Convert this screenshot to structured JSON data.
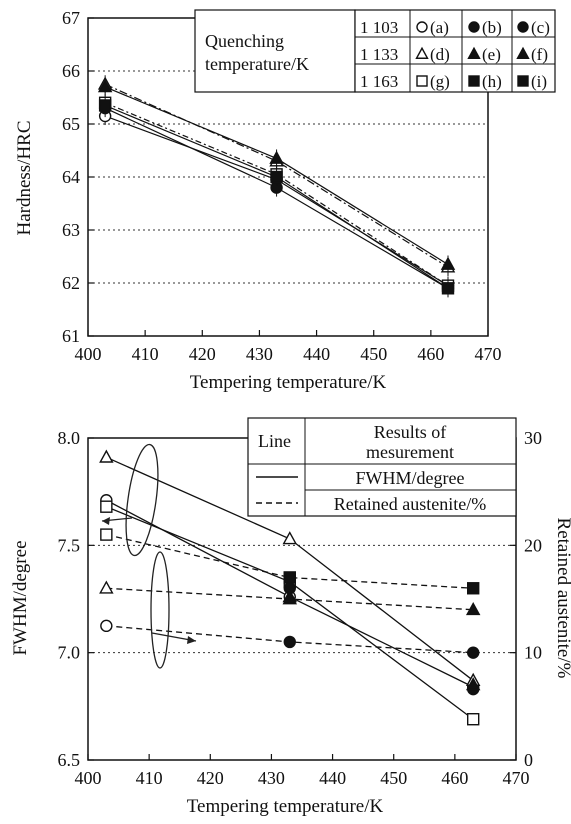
{
  "chart_data": [
    {
      "type": "line",
      "xlabel": "Tempering temperature/K",
      "ylabel": "Hardness/HRC",
      "xlim": [
        400,
        470
      ],
      "ylim": [
        61,
        67
      ],
      "xticks": [
        "400",
        "410",
        "420",
        "430",
        "440",
        "450",
        "460",
        "470"
      ],
      "yticks": [
        "61",
        "62",
        "63",
        "64",
        "65",
        "66",
        "67"
      ],
      "grid": "horizontal dotted",
      "legend": {
        "placement": "top-right",
        "title_line1": "Quenching",
        "title_line2": "temperature/K",
        "rows": [
          {
            "temperature": "1 103",
            "labels": [
              "(a)",
              "(b)",
              "(c)"
            ]
          },
          {
            "temperature": "1 133",
            "labels": [
              "(d)",
              "(e)",
              "(f)"
            ]
          },
          {
            "temperature": "1 163",
            "labels": [
              "(g)",
              "(h)",
              "(i)"
            ]
          }
        ]
      },
      "series": [
        {
          "key": "a",
          "marker": "circle-open",
          "x": [
            403,
            433,
            463
          ],
          "values": [
            65.15,
            63.95,
            61.95
          ]
        },
        {
          "key": "b",
          "marker": "circle-filled",
          "x": [
            403,
            433,
            463
          ],
          "values": [
            65.3,
            63.8,
            61.9
          ]
        },
        {
          "key": "d",
          "marker": "triangle-open",
          "x": [
            403,
            433,
            463
          ],
          "values": [
            65.75,
            64.3,
            62.3
          ]
        },
        {
          "key": "e",
          "marker": "triangle-filled",
          "x": [
            403,
            433,
            463
          ],
          "values": [
            65.7,
            64.35,
            62.35
          ]
        },
        {
          "key": "g",
          "marker": "square-open",
          "x": [
            403,
            433,
            463
          ],
          "values": [
            65.4,
            64.05,
            61.95
          ]
        },
        {
          "key": "h",
          "marker": "square-filled",
          "x": [
            403,
            433,
            463
          ],
          "values": [
            65.35,
            64.0,
            61.9
          ]
        }
      ]
    },
    {
      "type": "line",
      "xlabel": "Tempering temperature/K",
      "ylabel": "FWHM/degree",
      "y2label": "Retained austenite/%",
      "xlim": [
        400,
        470
      ],
      "ylim": [
        6.5,
        8.0
      ],
      "y2lim": [
        0,
        30
      ],
      "xticks": [
        "400",
        "410",
        "420",
        "430",
        "440",
        "450",
        "460",
        "470"
      ],
      "yticks": [
        "6.5",
        "7.0",
        "7.5",
        "8.0"
      ],
      "y2ticks": [
        "0",
        "10",
        "20",
        "30"
      ],
      "grid": "horizontal dotted",
      "legend": {
        "placement": "top-right",
        "header_line": "Line",
        "header_results_1": "Results of",
        "header_results_2": "mesurement",
        "row1": "FWHM/degree",
        "row2": "Retained austenite/%"
      },
      "fwhm_series": [
        {
          "key": "a",
          "marker": "circle-open",
          "x": [
            403,
            433,
            463
          ],
          "values": [
            7.71,
            7.26,
            6.84
          ]
        },
        {
          "key": "d",
          "marker": "triangle-open",
          "x": [
            403,
            433,
            463
          ],
          "values": [
            7.91,
            7.53,
            6.87
          ]
        },
        {
          "key": "g",
          "marker": "square-open",
          "x": [
            403,
            433,
            463
          ],
          "values": [
            7.68,
            7.33,
            6.69
          ]
        }
      ],
      "fwhm_filled_markers": [
        {
          "marker": "circle-filled",
          "x": 433,
          "value": 7.3
        },
        {
          "marker": "triangle-filled",
          "x": 433,
          "value": 7.26
        },
        {
          "marker": "square-filled",
          "x": 433,
          "value": 7.35
        },
        {
          "marker": "circle-filled",
          "x": 463,
          "value": 6.83
        },
        {
          "marker": "triangle-filled",
          "x": 463,
          "value": 6.85
        }
      ],
      "austenite_series": [
        {
          "key": "a",
          "marker": "circle",
          "x": [
            403,
            433,
            463
          ],
          "values": [
            12.5,
            11.0,
            10.0
          ]
        },
        {
          "key": "d",
          "marker": "triangle",
          "x": [
            403,
            433,
            463
          ],
          "values": [
            16.0,
            15.0,
            14.0
          ]
        },
        {
          "key": "g",
          "marker": "square",
          "x": [
            403,
            433,
            463
          ],
          "values": [
            21.0,
            17.0,
            16.0
          ]
        }
      ]
    }
  ]
}
